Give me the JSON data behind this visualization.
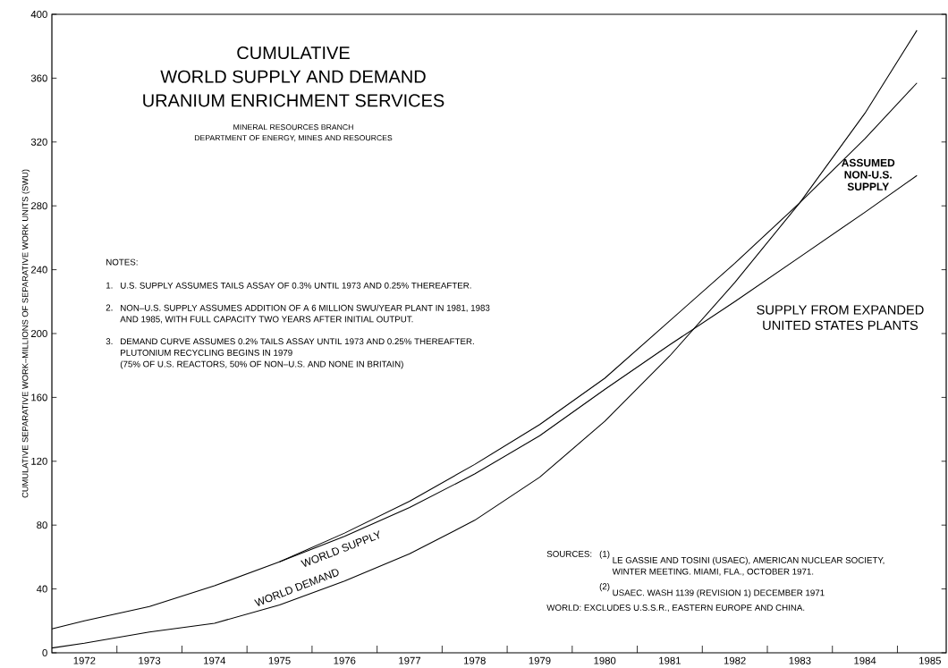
{
  "chart_data": {
    "type": "line",
    "title": "CUMULATIVE WORLD SUPPLY AND DEMAND URANIUM ENRICHMENT SERVICES",
    "subtitle": "MINERAL RESOURCES BRANCH DEPARTMENT OF ENERGY, MINES AND RESOURCES",
    "ylabel": "CUMULATIVE SEPARATIVE WORK–MILLIONS OF SEPARATIVE WORK UNITS (SWU)",
    "xlim": [
      1971.5,
      1985.25
    ],
    "ylim": [
      0,
      400
    ],
    "xticks": [
      {
        "value": 1972,
        "label": "1972"
      },
      {
        "value": 1973,
        "label": "1973"
      },
      {
        "value": 1974,
        "label": "1974"
      },
      {
        "value": 1975,
        "label": "1975"
      },
      {
        "value": 1976,
        "label": "1976"
      },
      {
        "value": 1977,
        "label": "1977"
      },
      {
        "value": 1978,
        "label": "1978"
      },
      {
        "value": 1979,
        "label": "1979"
      },
      {
        "value": 1980,
        "label": "1980"
      },
      {
        "value": 1981,
        "label": "1981"
      },
      {
        "value": 1982,
        "label": "1982"
      },
      {
        "value": 1983,
        "label": "1983"
      },
      {
        "value": 1984,
        "label": "1984"
      },
      {
        "value": 1985,
        "label": "1985"
      },
      {
        "value": 1972.5,
        "label": null
      },
      {
        "value": 1973.5,
        "label": null
      },
      {
        "value": 1974.5,
        "label": null
      },
      {
        "value": 1975.5,
        "label": null
      },
      {
        "value": 1976.5,
        "label": null
      },
      {
        "value": 1977.5,
        "label": null
      },
      {
        "value": 1978.5,
        "label": null
      },
      {
        "value": 1979.5,
        "label": null
      },
      {
        "value": 1980.5,
        "label": null
      },
      {
        "value": 1981.5,
        "label": null
      },
      {
        "value": 1982.5,
        "label": null
      },
      {
        "value": 1983.5,
        "label": null
      },
      {
        "value": 1984.5,
        "label": null
      }
    ],
    "yticks": [
      0,
      40,
      80,
      120,
      160,
      200,
      240,
      280,
      320,
      360,
      400
    ],
    "series": [
      {
        "name": "WORLD SUPPLY",
        "color": "#000000",
        "x": [
          1971.5,
          1972,
          1973,
          1974,
          1975,
          1976,
          1977,
          1978,
          1979,
          1980,
          1981,
          1982,
          1983,
          1984,
          1984.8
        ],
        "values": [
          15,
          20,
          29,
          42,
          57,
          75,
          95,
          118,
          143,
          172,
          208,
          244,
          282,
          322,
          357
        ]
      },
      {
        "name": "WORLD DEMAND",
        "color": "#000000",
        "x": [
          1971.5,
          1972,
          1973,
          1974,
          1975,
          1976,
          1977,
          1978,
          1979,
          1980,
          1981,
          1982,
          1983,
          1984,
          1984.8
        ],
        "values": [
          3,
          6,
          13,
          18.5,
          30,
          45,
          62,
          83,
          110,
          145,
          186,
          232,
          282,
          338,
          390
        ]
      },
      {
        "name": "SUPPLY FROM EXPANDED UNITED STATES PLANTS",
        "color": "#000000",
        "x": [
          1975,
          1976,
          1977,
          1978,
          1979,
          1980,
          1981,
          1982,
          1983,
          1984,
          1984.8
        ],
        "values": [
          57,
          73,
          91,
          112,
          136,
          165,
          193,
          220,
          248,
          276,
          299
        ]
      }
    ],
    "annotations": [
      "ASSUMED NON-U.S. SUPPLY",
      "NOTES:",
      "1.",
      "U.S. SUPPLY ASSUMES TAILS ASSAY OF 0.3% UNTIL 1973 AND 0.25% THEREAFTER.",
      "2.",
      "NON–U.S. SUPPLY ASSUMES ADDITION OF A 6 MILLION SWU/YEAR PLANT IN 1981, 1983 AND 1985, WITH FULL CAPACITY TWO YEARS AFTER INITIAL OUTPUT.",
      "3.",
      "DEMAND CURVE ASSUMES 0.2% TAILS ASSAY UNTIL 1973 AND 0.25% THEREAFTER. PLUTONIUM RECYCLING BEGINS IN 1979",
      "(75% OF U.S. REACTORS, 50% OF NON–U.S. AND NONE IN BRITAIN)",
      "SOURCES:",
      "(1)",
      "LE GASSIE AND TOSINI (USAEC), AMERICAN NUCLEAR SOCIETY, WINTER MEETING. MIAMI, FLA., OCTOBER 1971.",
      "(2)",
      "USAEC. WASH 1139 (REVISION 1) DECEMBER 1971",
      "WORLD: EXCLUDES U.S.S.R., EASTERN EUROPE AND CHINA."
    ]
  }
}
